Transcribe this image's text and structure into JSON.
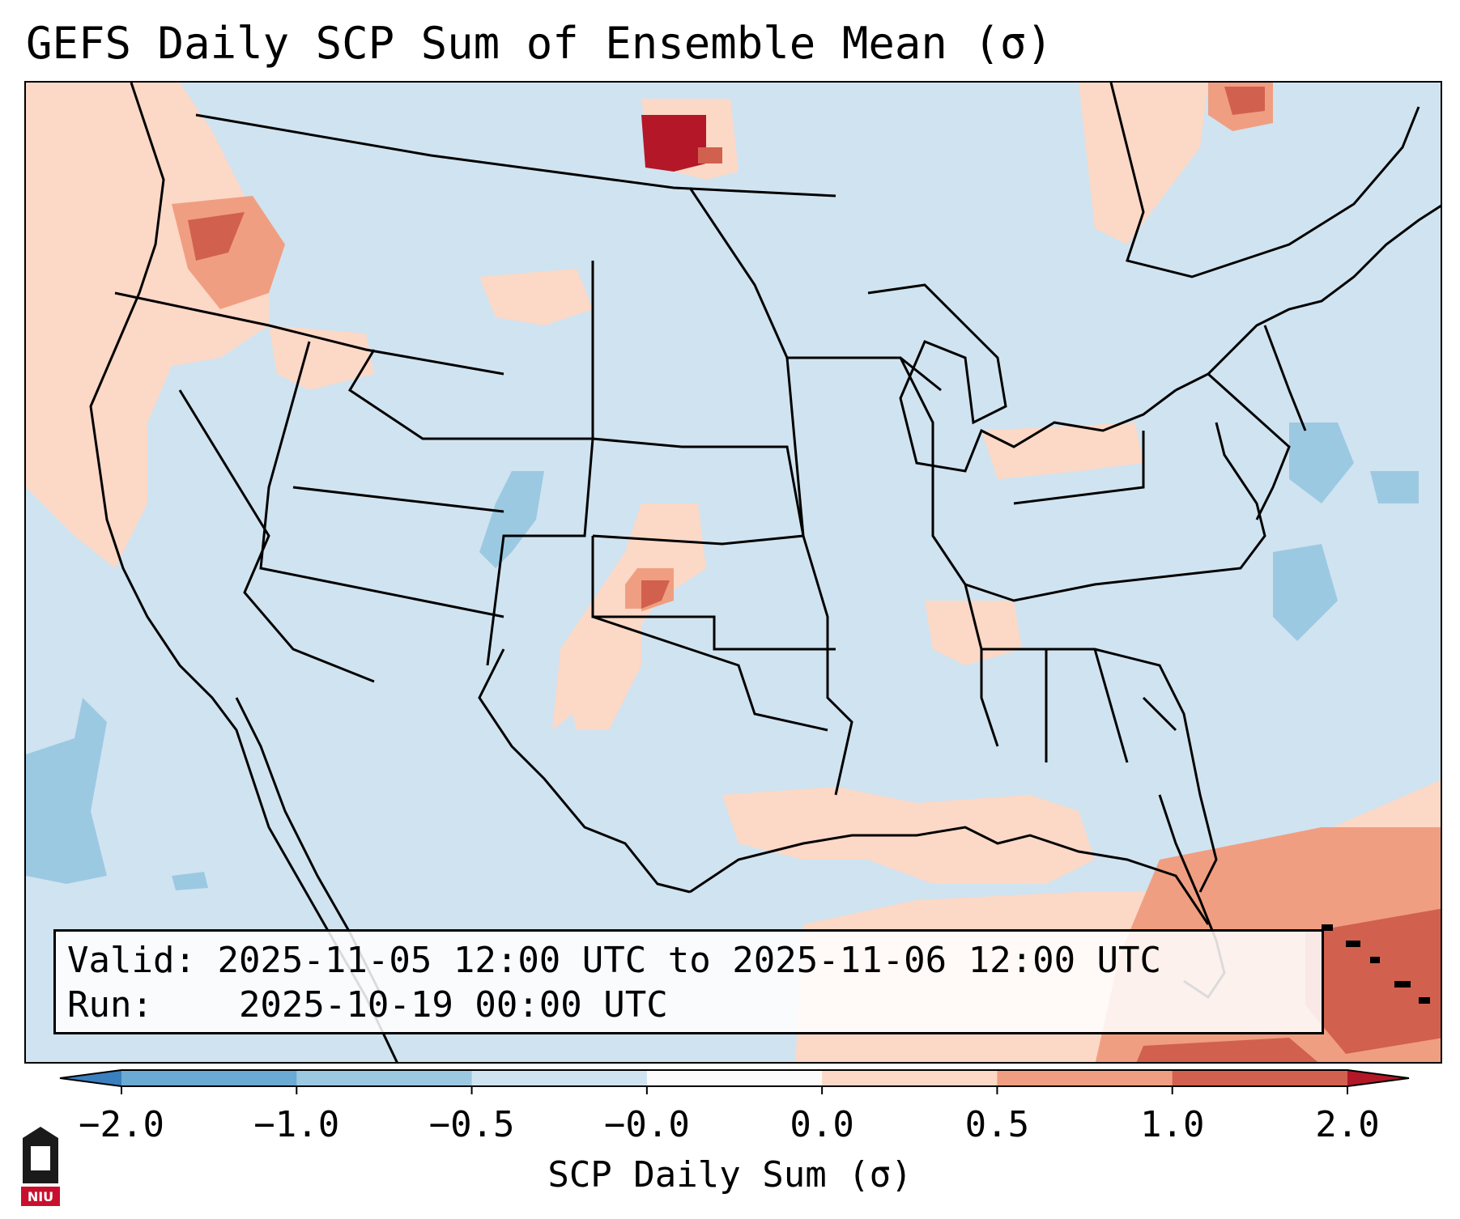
{
  "title": "GEFS Daily SCP Sum of Ensemble Mean (σ)",
  "info": {
    "valid_label": "Valid:",
    "valid_value": "2025-11-05 12:00 UTC to 2025-11-06 12:00 UTC",
    "run_label": "Run:",
    "run_value": "2025-10-19 00:00 UTC"
  },
  "colorbar": {
    "label": "SCP Daily Sum (σ)",
    "bounds": [
      -2.0,
      -1.0,
      -0.5,
      -0.0,
      0.0,
      0.5,
      1.0,
      2.0
    ],
    "tick_labels": [
      "−2.0",
      "−1.0",
      "−0.5",
      "−0.0",
      "0.0",
      "0.5",
      "1.0",
      "2.0"
    ],
    "colors": [
      "#3a7fbe",
      "#6aaad3",
      "#9cc9e2",
      "#d0e3f0",
      "#fbfbfb",
      "#fcd8c6",
      "#f09e81",
      "#d2604e",
      "#b31728"
    ],
    "extend": "both"
  },
  "logo": {
    "text": "NIU",
    "colors": {
      "dark": "#1a1a1a",
      "red": "#c8102e"
    }
  },
  "map_data": {
    "projection": "lambert-conformal CONUS",
    "background_color": "#d0e3f0",
    "anomaly_areas": [
      {
        "region": "Pacific Northwest",
        "level": "0 to 0.5",
        "color": "#fcd8c6"
      },
      {
        "region": "Washington interior",
        "level": "1.0 to 2.0",
        "color": "#d2604e"
      },
      {
        "region": "Saskatchewan-Manitoba border",
        "level": "> 2.0",
        "color": "#b31728"
      },
      {
        "region": "Oklahoma-Kansas border",
        "level": "1.0 to 2.0",
        "color": "#d2604e"
      },
      {
        "region": "Colorado-Utah",
        "level": "-1.0 to -0.5",
        "color": "#9cc9e2"
      },
      {
        "region": "Eastern Pacific off Baja",
        "level": "-1.0 to -0.5",
        "color": "#9cc9e2"
      },
      {
        "region": "Western Atlantic",
        "level": "-1.0 to -0.5",
        "color": "#9cc9e2"
      },
      {
        "region": "Caribbean / Bahamas",
        "level": "0.5 to 2.0",
        "color": "#f09e81"
      },
      {
        "region": "Gulf of Mexico",
        "level": "0 to 0.5",
        "color": "#fcd8c6"
      },
      {
        "region": "Quebec",
        "level": "0.5 to 2.0",
        "color": "#d2604e"
      }
    ]
  }
}
